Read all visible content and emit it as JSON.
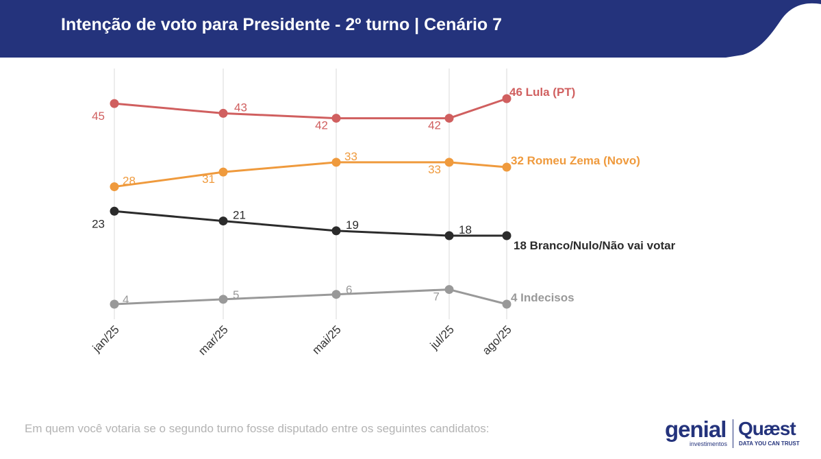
{
  "header": {
    "title": "Intenção de voto para Presidente - 2º turno | Cenário 7"
  },
  "colors": {
    "header_bg": "#24337c",
    "lula": "#d05f5f",
    "zema": "#ef9a3d",
    "branco": "#2b2b2b",
    "indecisos": "#999999",
    "grid": "#e6e6e6"
  },
  "chart_data": {
    "type": "line",
    "categories": [
      "jan/25",
      "mar/25",
      "mai/25",
      "jul/25",
      "ago/25"
    ],
    "series": [
      {
        "name": "Lula (PT)",
        "color": "#d05f5f",
        "values": [
          45,
          43,
          42,
          42,
          46
        ],
        "end_label": "46 Lula (PT)"
      },
      {
        "name": "Romeu Zema (Novo)",
        "color": "#ef9a3d",
        "values": [
          28,
          31,
          33,
          33,
          32
        ],
        "end_label": "32 Romeu Zema (Novo)"
      },
      {
        "name": "Branco/Nulo/Não vai votar",
        "color": "#2b2b2b",
        "values": [
          23,
          21,
          19,
          18,
          18
        ],
        "end_label": "18 Branco/Nulo/Não vai votar"
      },
      {
        "name": "Indecisos",
        "color": "#999999",
        "values": [
          4,
          5,
          6,
          7,
          4
        ],
        "end_label": "4 Indecisos"
      }
    ],
    "grid": "vertical",
    "legend": "end-of-line labels"
  },
  "footer": {
    "question": "Em quem você votaria se o segundo turno fosse disputado entre os seguintes candidatos:"
  },
  "logos": {
    "genial": "genial",
    "genial_sub": "investimentos",
    "quaest": "Quæst",
    "quaest_sub": "DATA YOU CAN TRUST"
  }
}
